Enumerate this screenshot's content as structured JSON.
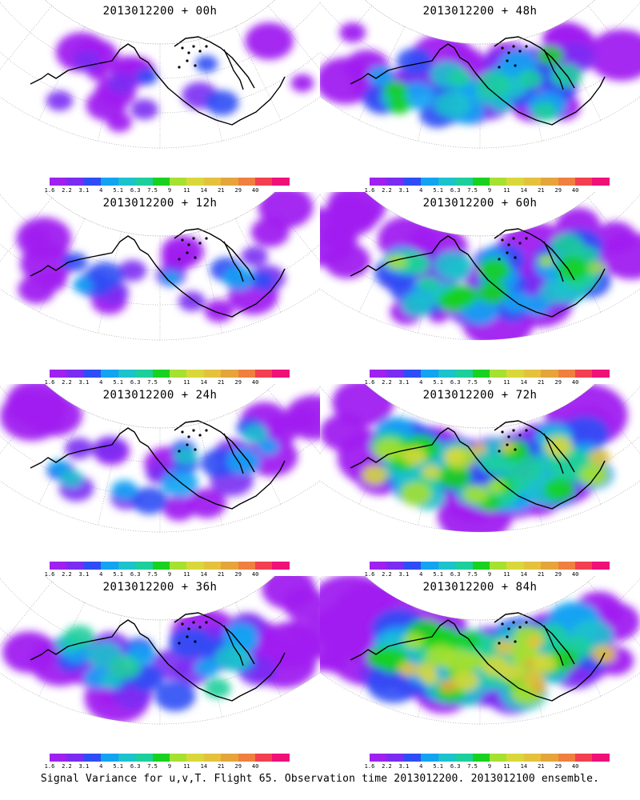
{
  "colorscale": {
    "colors": [
      "#a020f0",
      "#7a2cf2",
      "#2f4df4",
      "#13a3f3",
      "#1cc2cc",
      "#1ccf9b",
      "#18d21e",
      "#a6e030",
      "#d8d83a",
      "#e5c23c",
      "#e5a53a",
      "#f08040",
      "#f24050",
      "#f0107a"
    ],
    "labels": [
      "1.6",
      "2.2",
      "3.1",
      "4",
      "5.1",
      "6.3",
      "7.5",
      "9",
      "11",
      "14",
      "21",
      "29",
      "40"
    ]
  },
  "panels": [
    {
      "id": "00h",
      "title": "2013012200 + 00h",
      "col": 0,
      "row": 0,
      "intensity": 0.15
    },
    {
      "id": "48h",
      "title": "2013012200 + 48h",
      "col": 1,
      "row": 0,
      "intensity": 0.55
    },
    {
      "id": "12h",
      "title": "2013012200 + 12h",
      "col": 0,
      "row": 1,
      "intensity": 0.25
    },
    {
      "id": "60h",
      "title": "2013012200 + 60h",
      "col": 1,
      "row": 1,
      "intensity": 0.7
    },
    {
      "id": "24h",
      "title": "2013012200 + 24h",
      "col": 0,
      "row": 2,
      "intensity": 0.35
    },
    {
      "id": "72h",
      "title": "2013012200 + 72h",
      "col": 1,
      "row": 2,
      "intensity": 0.85
    },
    {
      "id": "36h",
      "title": "2013012200 + 36h",
      "col": 0,
      "row": 3,
      "intensity": 0.45
    },
    {
      "id": "84h",
      "title": "2013012200 + 84h",
      "col": 1,
      "row": 3,
      "intensity": 0.95
    }
  ],
  "footer": "Signal Variance for u,v,T. Flight 65. Observation time 2013012200. 2013012100 ensemble."
}
